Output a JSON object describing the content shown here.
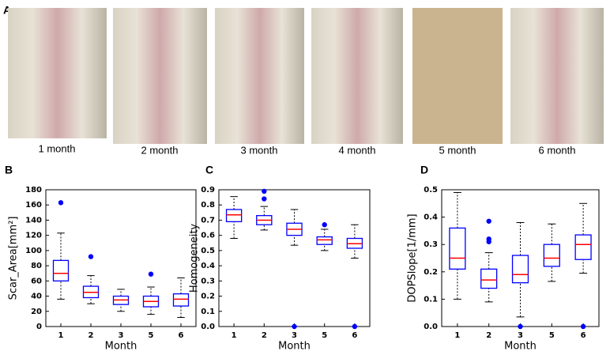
{
  "photos": {
    "panel": "A",
    "captions": [
      "1 month",
      "2 month",
      "3 month",
      "4 month",
      "5 month",
      "6 month"
    ]
  },
  "chart_data": [
    {
      "type": "box",
      "panel": "B",
      "ylabel": "Scar_Area[mm²]",
      "xlabel": "Month",
      "categories": [
        "1",
        "2",
        "3",
        "5",
        "6"
      ],
      "color": "#0000ff",
      "median_color": "#ff0000",
      "boxes": [
        {
          "whislo": 36,
          "q1": 60,
          "med": 70,
          "q3": 87,
          "whishi": 123,
          "fliers": [
            163
          ]
        },
        {
          "whislo": 30,
          "q1": 38,
          "med": 45,
          "q3": 53,
          "whishi": 67,
          "fliers": [
            92
          ]
        },
        {
          "whislo": 20,
          "q1": 29,
          "med": 35,
          "q3": 40,
          "whishi": 49,
          "fliers": []
        },
        {
          "whislo": 16,
          "q1": 26,
          "med": 33,
          "q3": 40,
          "whishi": 52,
          "fliers": [
            69
          ]
        },
        {
          "whislo": 12,
          "q1": 27,
          "med": 36,
          "q3": 43,
          "whishi": 64,
          "fliers": []
        }
      ],
      "ylim": [
        0,
        180
      ],
      "yticks": [
        0,
        20,
        40,
        60,
        80,
        100,
        120,
        140,
        160,
        180
      ]
    },
    {
      "type": "box",
      "panel": "C",
      "ylabel": "Homogeneity",
      "xlabel": "Month",
      "categories": [
        "1",
        "2",
        "3",
        "5",
        "6"
      ],
      "color": "#0000ff",
      "median_color": "#ff0000",
      "boxes": [
        {
          "whislo": 0.58,
          "q1": 0.69,
          "med": 0.735,
          "q3": 0.77,
          "whishi": 0.855,
          "fliers": []
        },
        {
          "whislo": 0.635,
          "q1": 0.67,
          "med": 0.7,
          "q3": 0.73,
          "whishi": 0.79,
          "fliers": [
            0.89,
            0.84
          ]
        },
        {
          "whislo": 0.535,
          "q1": 0.6,
          "med": 0.64,
          "q3": 0.68,
          "whishi": 0.77,
          "fliers": [
            0
          ]
        },
        {
          "whislo": 0.5,
          "q1": 0.54,
          "med": 0.57,
          "q3": 0.59,
          "whishi": 0.64,
          "fliers": [
            0.67
          ]
        },
        {
          "whislo": 0.45,
          "q1": 0.515,
          "med": 0.545,
          "q3": 0.58,
          "whishi": 0.67,
          "fliers": [
            0
          ]
        }
      ],
      "ylim": [
        0,
        0.9
      ],
      "yticks": [
        {
          "value": 0,
          "label": "0.0"
        },
        0.1,
        0.2,
        0.3,
        0.4,
        0.5,
        0.6,
        0.7,
        0.8,
        0.9
      ]
    },
    {
      "type": "box",
      "panel": "D",
      "ylabel": "DOPSlope[1/mm]",
      "xlabel": "Month",
      "categories": [
        "1",
        "2",
        "3",
        "5",
        "6"
      ],
      "color": "#0000ff",
      "median_color": "#ff0000",
      "boxes": [
        {
          "whislo": 0.1,
          "q1": 0.21,
          "med": 0.25,
          "q3": 0.36,
          "whishi": 0.49,
          "fliers": []
        },
        {
          "whislo": 0.09,
          "q1": 0.14,
          "med": 0.17,
          "q3": 0.21,
          "whishi": 0.27,
          "fliers": [
            0.385,
            0.32,
            0.31
          ]
        },
        {
          "whislo": 0.035,
          "q1": 0.16,
          "med": 0.19,
          "q3": 0.26,
          "whishi": 0.38,
          "fliers": [
            0
          ]
        },
        {
          "whislo": 0.165,
          "q1": 0.22,
          "med": 0.25,
          "q3": 0.3,
          "whishi": 0.375,
          "fliers": []
        },
        {
          "whislo": 0.195,
          "q1": 0.245,
          "med": 0.3,
          "q3": 0.335,
          "whishi": 0.45,
          "fliers": [
            0
          ]
        }
      ],
      "ylim": [
        0,
        0.5
      ],
      "yticks": [
        {
          "value": 0,
          "label": "0.0"
        },
        0.1,
        0.2,
        0.3,
        0.4,
        0.5
      ]
    }
  ]
}
